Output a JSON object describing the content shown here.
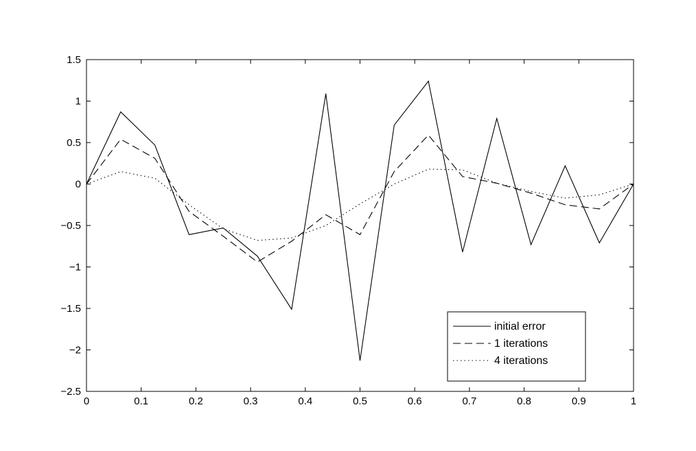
{
  "chart_data": {
    "type": "line",
    "title": "",
    "xlabel": "",
    "ylabel": "",
    "xlim": [
      0,
      1
    ],
    "ylim": [
      -2.5,
      1.5
    ],
    "grid": false,
    "legend_position": "bottom-right",
    "xticks": [
      0,
      0.1,
      0.2,
      0.3,
      0.4,
      0.5,
      0.6,
      0.7,
      0.8,
      0.9,
      1
    ],
    "xtick_labels": [
      "0",
      "0.1",
      "0.2",
      "0.3",
      "0.4",
      "0.5",
      "0.6",
      "0.7",
      "0.8",
      "0.9",
      "1"
    ],
    "yticks": [
      1.5,
      1,
      0.5,
      0,
      -0.5,
      -1,
      -1.5,
      -2,
      -2.5
    ],
    "ytick_labels": [
      "1.5",
      "1",
      "0.5",
      "0",
      "−0.5",
      "−1",
      "−1.5",
      "−2",
      "−2.5"
    ],
    "x": [
      0,
      0.0625,
      0.125,
      0.1875,
      0.25,
      0.3125,
      0.375,
      0.4375,
      0.5,
      0.5625,
      0.625,
      0.6875,
      0.75,
      0.8125,
      0.875,
      0.9375,
      1
    ],
    "series": [
      {
        "name": "initial error",
        "style": "solid",
        "values": [
          0,
          0.87,
          0.47,
          -0.61,
          -0.53,
          -0.87,
          -1.51,
          1.09,
          -2.13,
          0.71,
          1.24,
          -0.82,
          0.79,
          -0.73,
          0.22,
          -0.71,
          0
        ]
      },
      {
        "name": "1 iterations",
        "style": "dashed",
        "values": [
          0,
          0.54,
          0.31,
          -0.33,
          -0.63,
          -0.94,
          -0.69,
          -0.37,
          -0.61,
          0.15,
          0.59,
          0.09,
          0.01,
          -0.11,
          -0.25,
          -0.3,
          0
        ]
      },
      {
        "name": "4 iterations",
        "style": "dotted",
        "values": [
          0,
          0.15,
          0.07,
          -0.25,
          -0.54,
          -0.68,
          -0.65,
          -0.5,
          -0.24,
          0,
          0.18,
          0.17,
          0.01,
          -0.09,
          -0.17,
          -0.13,
          0
        ]
      }
    ],
    "colors": {
      "lines": "#000000",
      "axes": "#000000",
      "background": "#ffffff"
    }
  }
}
